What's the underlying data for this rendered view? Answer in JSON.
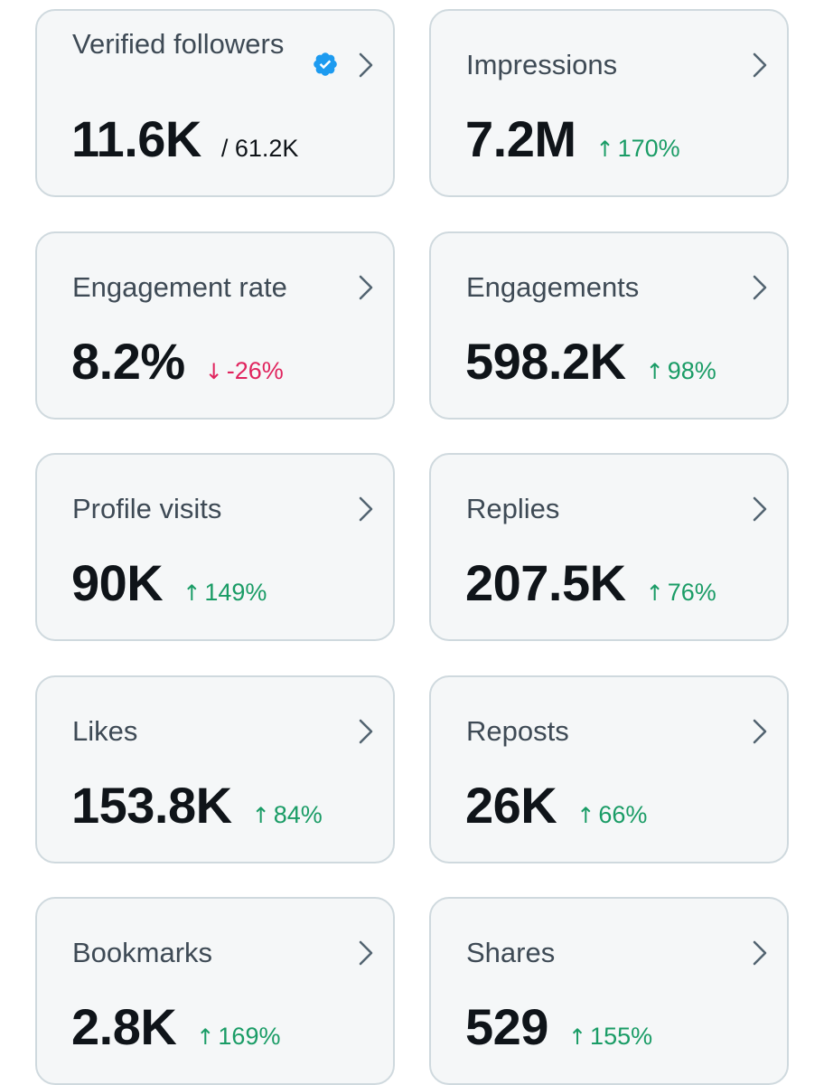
{
  "colors": {
    "card_bg": "#f5f7f8",
    "card_border": "#cfd9de",
    "value_text": "#0f1419",
    "label_text": "#3e4a55",
    "up": "#1a9c66",
    "down": "#e0245e",
    "verified_badge": "#1d9bf0"
  },
  "metrics": [
    {
      "label": "Verified followers",
      "value": "11.6K",
      "total": "/ 61.2K",
      "icon": "verified-badge-icon"
    },
    {
      "label": "Impressions",
      "value": "7.2M",
      "arrow": "↑",
      "change": "170%",
      "direction": "up"
    },
    {
      "label": "Engagement rate",
      "value": "8.2%",
      "arrow": "↓",
      "change": "-26%",
      "direction": "down"
    },
    {
      "label": "Engagements",
      "value": "598.2K",
      "arrow": "↑",
      "change": "98%",
      "direction": "up"
    },
    {
      "label": "Profile visits",
      "value": "90K",
      "arrow": "↑",
      "change": "149%",
      "direction": "up"
    },
    {
      "label": "Replies",
      "value": "207.5K",
      "arrow": "↑",
      "change": "76%",
      "direction": "up"
    },
    {
      "label": "Likes",
      "value": "153.8K",
      "arrow": "↑",
      "change": "84%",
      "direction": "up"
    },
    {
      "label": "Reposts",
      "value": "26K",
      "arrow": "↑",
      "change": "66%",
      "direction": "up"
    },
    {
      "label": "Bookmarks",
      "value": "2.8K",
      "arrow": "↑",
      "change": "169%",
      "direction": "up"
    },
    {
      "label": "Shares",
      "value": "529",
      "arrow": "↑",
      "change": "155%",
      "direction": "up"
    }
  ]
}
